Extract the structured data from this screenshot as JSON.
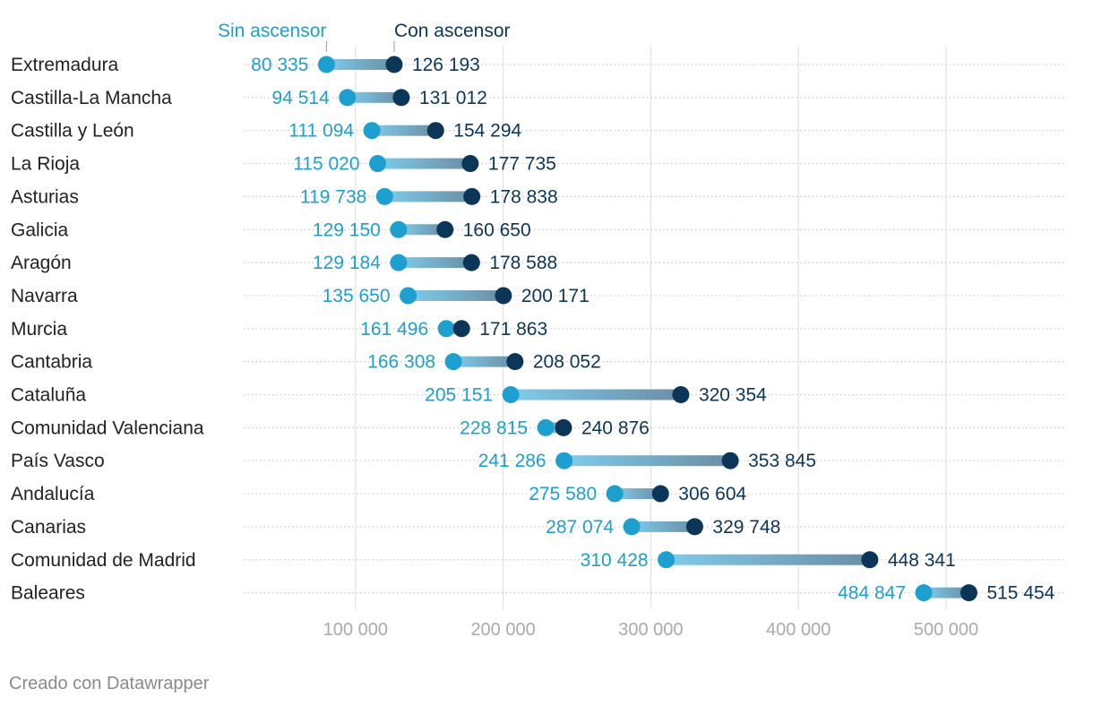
{
  "chart_data": {
    "type": "dumbbell",
    "legend": {
      "sin": "Sin ascensor",
      "con": "Con ascensor"
    },
    "regions": [
      "Extremadura",
      "Castilla-La Mancha",
      "Castilla y León",
      "La Rioja",
      "Asturias",
      "Galicia",
      "Aragón",
      "Navarra",
      "Murcia",
      "Cantabria",
      "Cataluña",
      "Comunidad Valenciana",
      "País Vasco",
      "Andalucía",
      "Canarias",
      "Comunidad de Madrid",
      "Baleares"
    ],
    "series": [
      {
        "name": "Sin ascensor",
        "values": [
          80335,
          94514,
          111094,
          115020,
          119738,
          129150,
          129184,
          135650,
          161496,
          166308,
          205151,
          228815,
          241286,
          275580,
          287074,
          310428,
          484847
        ]
      },
      {
        "name": "Con ascensor",
        "values": [
          126193,
          131012,
          154294,
          177735,
          178838,
          160650,
          178588,
          200171,
          171863,
          208052,
          320354,
          240876,
          353845,
          306604,
          329748,
          448341,
          515454
        ]
      }
    ],
    "value_labels_sin": [
      "80 335",
      "94 514",
      "111 094",
      "115 020",
      "119 738",
      "129 150",
      "129 184",
      "135 650",
      "161 496",
      "166 308",
      "205 151",
      "228 815",
      "241 286",
      "275 580",
      "287 074",
      "310 428",
      "484 847"
    ],
    "value_labels_con": [
      "126 193",
      "131 012",
      "154 294",
      "177 735",
      "178 838",
      "160 650",
      "178 588",
      "200 171",
      "171 863",
      "208 052",
      "320 354",
      "240 876",
      "353 845",
      "306 604",
      "329 748",
      "448 341",
      "515 454"
    ],
    "x_ticks": [
      100000,
      200000,
      300000,
      400000,
      500000
    ],
    "x_tick_labels": [
      "100 000",
      "200 000",
      "300 000",
      "400 000",
      "500 000"
    ],
    "xlim": [
      0,
      570000
    ],
    "colors": {
      "sin": "#1d9fcf",
      "con": "#0c3658",
      "grid": "#dddddd",
      "label": "#222222",
      "tick": "#aaaaaa"
    }
  },
  "footer": {
    "credit": "Creado con Datawrapper"
  }
}
